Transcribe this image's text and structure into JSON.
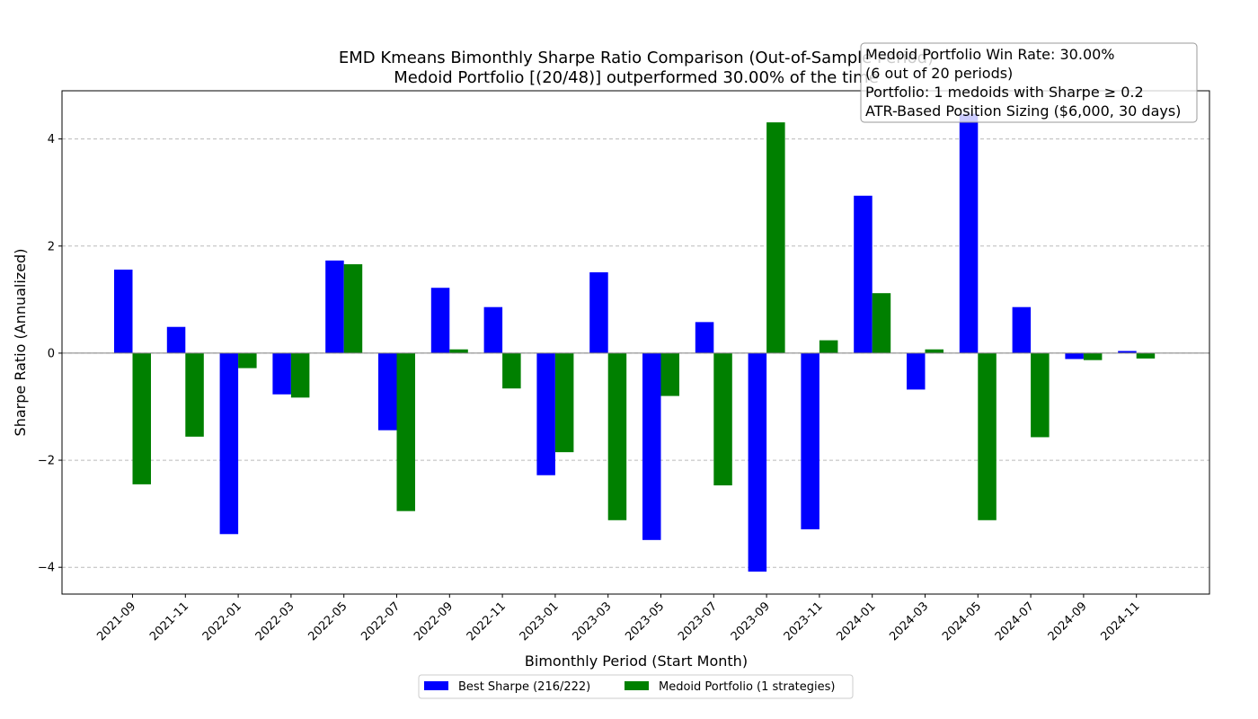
{
  "chart_data": {
    "type": "bar",
    "title": "EMD Kmeans Bimonthly Sharpe Ratio Comparison (Out-of-Sample Period)",
    "subtitle": "Medoid Portfolio [(20/48)] outperformed 30.00% of the time",
    "xlabel": "Bimonthly Period (Start Month)",
    "ylabel": "Sharpe Ratio (Annualized)",
    "ylim": [
      -4.5,
      4.9
    ],
    "yticks": [
      -4,
      -2,
      0,
      2,
      4
    ],
    "grid": "y-dashed",
    "legend_position": "bottom-center",
    "categories": [
      "2021-09",
      "2021-11",
      "2022-01",
      "2022-03",
      "2022-05",
      "2022-07",
      "2022-09",
      "2022-11",
      "2023-01",
      "2023-03",
      "2023-05",
      "2023-07",
      "2023-09",
      "2023-11",
      "2024-01",
      "2024-03",
      "2024-05",
      "2024-07",
      "2024-09",
      "2024-11"
    ],
    "series": [
      {
        "name": "Best Sharpe (216/222)",
        "color": "#0000ff",
        "values": [
          1.56,
          0.49,
          -3.38,
          -0.77,
          1.73,
          -1.44,
          1.22,
          0.86,
          -2.28,
          1.51,
          -3.49,
          0.58,
          -4.08,
          -3.29,
          2.94,
          -0.68,
          4.47,
          0.86,
          -0.11,
          0.04
        ]
      },
      {
        "name": "Medoid Portfolio (1 strategies)",
        "color": "#008000",
        "values": [
          -2.45,
          -1.56,
          -0.28,
          -0.83,
          1.66,
          -2.95,
          0.07,
          -0.66,
          -1.85,
          -3.12,
          -0.8,
          -2.47,
          4.31,
          0.24,
          1.12,
          0.07,
          -3.12,
          -1.57,
          -0.13,
          -0.1
        ]
      }
    ],
    "stats_box": [
      "Medoid Portfolio Win Rate: 30.00%",
      "(6 out of 20 periods)",
      "Portfolio: 1 medoids with Sharpe ≥ 0.2",
      "ATR-Based Position Sizing ($6,000, 30 days)"
    ]
  }
}
